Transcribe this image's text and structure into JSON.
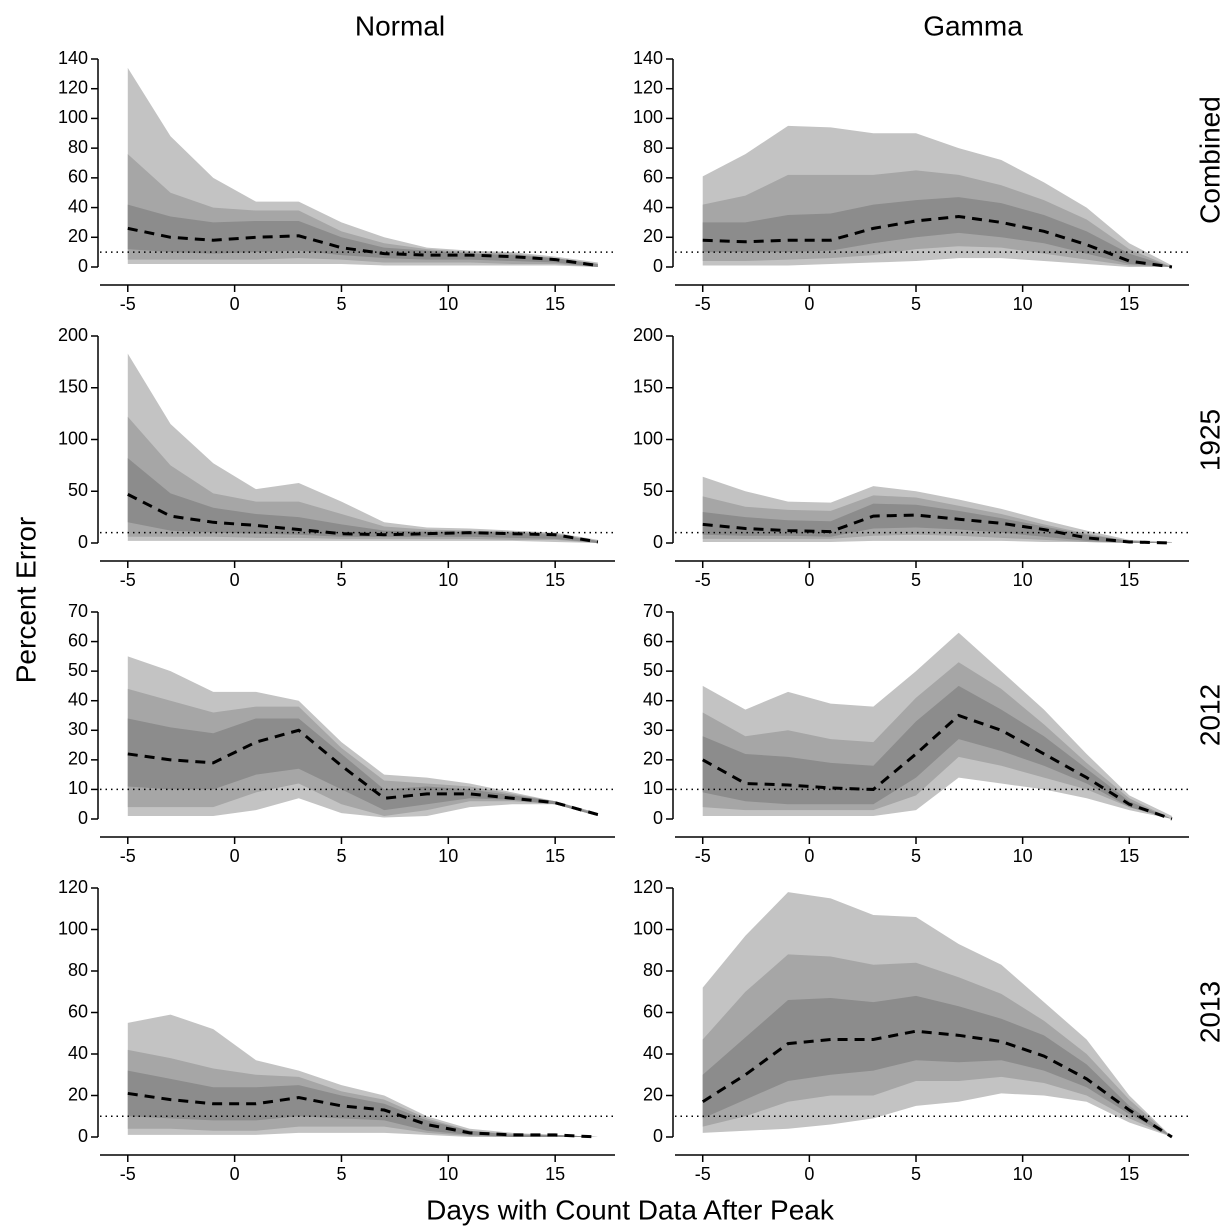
{
  "figure": {
    "column_titles": [
      "Normal",
      "Gamma"
    ],
    "row_labels": [
      "Combined",
      "1925",
      "2012",
      "2013"
    ],
    "ylabel": "Percent Error",
    "xlabel": "Days with Count Data After Peak"
  },
  "chart_data": [
    {
      "type": "band",
      "x": [
        -5,
        -3,
        -1,
        1,
        3,
        5,
        7,
        9,
        11,
        13,
        15,
        17
      ],
      "xlim": [
        -6.3,
        17.8
      ],
      "xticks": [
        -5,
        0,
        5,
        10,
        15
      ],
      "ylim": [
        0,
        140
      ],
      "yticks": [
        0,
        20,
        40,
        60,
        80,
        100,
        120,
        140
      ],
      "reference_line": 10,
      "bands": [
        {
          "color": "#c3c3c3",
          "lower": [
            2,
            2,
            2,
            2,
            2,
            2,
            1,
            1,
            1,
            1,
            1,
            0
          ],
          "upper": [
            134,
            88,
            60,
            44,
            44,
            30,
            20,
            13,
            11,
            10,
            7,
            3
          ]
        },
        {
          "color": "#a6a6a6",
          "lower": [
            5,
            5,
            5,
            5,
            6,
            5,
            3,
            3,
            3,
            2,
            2,
            0
          ],
          "upper": [
            76,
            50,
            40,
            38,
            38,
            24,
            16,
            12,
            10,
            9,
            6,
            2
          ]
        },
        {
          "color": "#8c8c8c",
          "lower": [
            12,
            10,
            9,
            10,
            11,
            8,
            6,
            5,
            5,
            4,
            3,
            0
          ],
          "upper": [
            42,
            34,
            30,
            31,
            31,
            20,
            13,
            11,
            9,
            8,
            6,
            2
          ]
        }
      ],
      "median": {
        "color": "#000000",
        "values": [
          26,
          20,
          18,
          20,
          21,
          13,
          9,
          8,
          8,
          7,
          5,
          1
        ]
      }
    },
    {
      "type": "band",
      "x": [
        -5,
        -3,
        -1,
        1,
        3,
        5,
        7,
        9,
        11,
        13,
        15,
        17
      ],
      "xlim": [
        -6.3,
        17.8
      ],
      "xticks": [
        -5,
        0,
        5,
        10,
        15
      ],
      "ylim": [
        0,
        140
      ],
      "yticks": [
        0,
        20,
        40,
        60,
        80,
        100,
        120,
        140
      ],
      "reference_line": 10,
      "bands": [
        {
          "color": "#c3c3c3",
          "lower": [
            1,
            1,
            1,
            2,
            3,
            4,
            6,
            6,
            4,
            2,
            0,
            0
          ],
          "upper": [
            61,
            76,
            95,
            94,
            90,
            90,
            80,
            72,
            57,
            40,
            16,
            1
          ]
        },
        {
          "color": "#a6a6a6",
          "lower": [
            4,
            4,
            5,
            6,
            8,
            12,
            14,
            13,
            9,
            5,
            1,
            0
          ],
          "upper": [
            42,
            48,
            62,
            62,
            62,
            65,
            62,
            55,
            45,
            32,
            12,
            0
          ]
        },
        {
          "color": "#8c8c8c",
          "lower": [
            10,
            10,
            10,
            11,
            16,
            20,
            23,
            20,
            16,
            9,
            2,
            0
          ],
          "upper": [
            30,
            30,
            35,
            36,
            42,
            45,
            47,
            43,
            35,
            24,
            9,
            0
          ]
        }
      ],
      "median": {
        "color": "#000000",
        "values": [
          18,
          17,
          18,
          18,
          26,
          31,
          34,
          30,
          24,
          15,
          4,
          0
        ]
      }
    },
    {
      "type": "band",
      "x": [
        -5,
        -3,
        -1,
        1,
        3,
        5,
        7,
        9,
        11,
        13,
        15,
        17
      ],
      "xlim": [
        -6.3,
        17.8
      ],
      "xticks": [
        -5,
        0,
        5,
        10,
        15
      ],
      "ylim": [
        0,
        200
      ],
      "yticks": [
        0,
        50,
        100,
        150,
        200
      ],
      "reference_line": 10,
      "bands": [
        {
          "color": "#c3c3c3",
          "lower": [
            2,
            2,
            2,
            2,
            2,
            2,
            2,
            2,
            2,
            2,
            1,
            0
          ],
          "upper": [
            183,
            115,
            77,
            52,
            58,
            40,
            20,
            15,
            14,
            12,
            10,
            3
          ]
        },
        {
          "color": "#a6a6a6",
          "lower": [
            6,
            6,
            6,
            5,
            5,
            4,
            4,
            4,
            4,
            3,
            3,
            0
          ],
          "upper": [
            122,
            75,
            48,
            40,
            40,
            28,
            16,
            13,
            12,
            11,
            9,
            2
          ]
        },
        {
          "color": "#8c8c8c",
          "lower": [
            20,
            12,
            10,
            9,
            8,
            6,
            6,
            6,
            6,
            5,
            4,
            0
          ],
          "upper": [
            82,
            48,
            34,
            28,
            25,
            18,
            12,
            11,
            11,
            10,
            8,
            2
          ]
        }
      ],
      "median": {
        "color": "#000000",
        "values": [
          47,
          26,
          20,
          17,
          13,
          9,
          8,
          9,
          10,
          9,
          8,
          1
        ]
      }
    },
    {
      "type": "band",
      "x": [
        -5,
        -3,
        -1,
        1,
        3,
        5,
        7,
        9,
        11,
        13,
        15,
        17
      ],
      "xlim": [
        -6.3,
        17.8
      ],
      "xticks": [
        -5,
        0,
        5,
        10,
        15
      ],
      "ylim": [
        0,
        200
      ],
      "yticks": [
        0,
        50,
        100,
        150,
        200
      ],
      "reference_line": 10,
      "bands": [
        {
          "color": "#c3c3c3",
          "lower": [
            1,
            1,
            1,
            1,
            2,
            2,
            2,
            2,
            1,
            1,
            0,
            0
          ],
          "upper": [
            64,
            50,
            40,
            39,
            55,
            50,
            42,
            33,
            22,
            12,
            3,
            1
          ]
        },
        {
          "color": "#a6a6a6",
          "lower": [
            4,
            4,
            4,
            4,
            7,
            8,
            7,
            5,
            3,
            1,
            0,
            0
          ],
          "upper": [
            45,
            35,
            32,
            31,
            46,
            44,
            36,
            28,
            18,
            9,
            2,
            0
          ]
        },
        {
          "color": "#8c8c8c",
          "lower": [
            8,
            7,
            7,
            6,
            14,
            15,
            13,
            10,
            6,
            2,
            0,
            0
          ],
          "upper": [
            30,
            25,
            22,
            21,
            38,
            37,
            31,
            24,
            16,
            8,
            2,
            0
          ]
        }
      ],
      "median": {
        "color": "#000000",
        "values": [
          18,
          14,
          12,
          11,
          26,
          27,
          23,
          19,
          13,
          5,
          1,
          0
        ]
      }
    },
    {
      "type": "band",
      "x": [
        -5,
        -3,
        -1,
        1,
        3,
        5,
        7,
        9,
        11,
        13,
        15,
        17
      ],
      "xlim": [
        -6.3,
        17.8
      ],
      "xticks": [
        -5,
        0,
        5,
        10,
        15
      ],
      "ylim": [
        0,
        70
      ],
      "yticks": [
        0,
        10,
        20,
        30,
        40,
        50,
        60,
        70
      ],
      "reference_line": 10,
      "bands": [
        {
          "color": "#c3c3c3",
          "lower": [
            1,
            1,
            1,
            3,
            7,
            2,
            0.5,
            1,
            4,
            5,
            5,
            1
          ],
          "upper": [
            55,
            50,
            43,
            43,
            40,
            26,
            15,
            14,
            12,
            9,
            6,
            2
          ]
        },
        {
          "color": "#a6a6a6",
          "lower": [
            4,
            4,
            4,
            9,
            12,
            5,
            1,
            3,
            6,
            6,
            5,
            1
          ],
          "upper": [
            44,
            40,
            36,
            38,
            38,
            24,
            13,
            12,
            11,
            8.5,
            6,
            2
          ]
        },
        {
          "color": "#8c8c8c",
          "lower": [
            11,
            10,
            10,
            15,
            17,
            10,
            3,
            5,
            7,
            6.5,
            5,
            1
          ],
          "upper": [
            34,
            31,
            29,
            34,
            34,
            22,
            10,
            11,
            10,
            8,
            6,
            1.5
          ]
        }
      ],
      "median": {
        "color": "#000000",
        "values": [
          22,
          20,
          19,
          26,
          30,
          18,
          7,
          8.5,
          8.5,
          7,
          5.5,
          1.5
        ]
      }
    },
    {
      "type": "band",
      "x": [
        -5,
        -3,
        -1,
        1,
        3,
        5,
        7,
        9,
        11,
        13,
        15,
        17
      ],
      "xlim": [
        -6.3,
        17.8
      ],
      "xticks": [
        -5,
        0,
        5,
        10,
        15
      ],
      "ylim": [
        0,
        70
      ],
      "yticks": [
        0,
        10,
        20,
        30,
        40,
        50,
        60,
        70
      ],
      "reference_line": 10,
      "bands": [
        {
          "color": "#c3c3c3",
          "lower": [
            1,
            1,
            1,
            1,
            1,
            3,
            14,
            12,
            10,
            7,
            3,
            0
          ],
          "upper": [
            45,
            37,
            43,
            39,
            38,
            50,
            63,
            50,
            37,
            22,
            8,
            1
          ]
        },
        {
          "color": "#a6a6a6",
          "lower": [
            4,
            3,
            3,
            3,
            3,
            8,
            21,
            18,
            14,
            10,
            4,
            0
          ],
          "upper": [
            36,
            28,
            30,
            27,
            26,
            41,
            53,
            44,
            32,
            19,
            7,
            0
          ]
        },
        {
          "color": "#8c8c8c",
          "lower": [
            9,
            6,
            5,
            5,
            5,
            14,
            27,
            23,
            18,
            12,
            4,
            0
          ],
          "upper": [
            28,
            22,
            21,
            19,
            18,
            33,
            45,
            37,
            28,
            17,
            6,
            0
          ]
        }
      ],
      "median": {
        "color": "#000000",
        "values": [
          20,
          12,
          11.5,
          10.5,
          10,
          22,
          35,
          30,
          22,
          14,
          5,
          0
        ]
      }
    },
    {
      "type": "band",
      "x": [
        -5,
        -3,
        -1,
        1,
        3,
        5,
        7,
        9,
        11,
        13,
        15,
        17
      ],
      "xlim": [
        -6.3,
        17.8
      ],
      "xticks": [
        -5,
        0,
        5,
        10,
        15
      ],
      "ylim": [
        0,
        120
      ],
      "yticks": [
        0,
        20,
        40,
        60,
        80,
        100,
        120
      ],
      "reference_line": 10,
      "bands": [
        {
          "color": "#c3c3c3",
          "lower": [
            1,
            1,
            1,
            1,
            2,
            2,
            2,
            1,
            0,
            0,
            0,
            0
          ],
          "upper": [
            55,
            59,
            52,
            37,
            32,
            25,
            20,
            10,
            4,
            2,
            1,
            0
          ]
        },
        {
          "color": "#a6a6a6",
          "lower": [
            4,
            4,
            3,
            3,
            5,
            5,
            5,
            2,
            0.5,
            0,
            0,
            0
          ],
          "upper": [
            42,
            38,
            33,
            30,
            29,
            22,
            18,
            9,
            3,
            1.5,
            1,
            0
          ]
        },
        {
          "color": "#8c8c8c",
          "lower": [
            10,
            9,
            8,
            8,
            10,
            9,
            8,
            3,
            1,
            0,
            0,
            0
          ],
          "upper": [
            32,
            28,
            24,
            24,
            25,
            20,
            16,
            8,
            3,
            1,
            1,
            0
          ]
        }
      ],
      "median": {
        "color": "#000000",
        "values": [
          21,
          18,
          16,
          16,
          19,
          15,
          13,
          6,
          2,
          1,
          1,
          0
        ]
      }
    },
    {
      "type": "band",
      "x": [
        -5,
        -3,
        -1,
        1,
        3,
        5,
        7,
        9,
        11,
        13,
        15,
        17
      ],
      "xlim": [
        -6.3,
        17.8
      ],
      "xticks": [
        -5,
        0,
        5,
        10,
        15
      ],
      "ylim": [
        0,
        120
      ],
      "yticks": [
        0,
        20,
        40,
        60,
        80,
        100,
        120
      ],
      "reference_line": 10,
      "bands": [
        {
          "color": "#c3c3c3",
          "lower": [
            2,
            3,
            4,
            6,
            9,
            15,
            17,
            21,
            20,
            17,
            7,
            0
          ],
          "upper": [
            72,
            97,
            118,
            115,
            107,
            106,
            93,
            83,
            65,
            47,
            20,
            0
          ]
        },
        {
          "color": "#a6a6a6",
          "lower": [
            5,
            10,
            17,
            20,
            20,
            27,
            27,
            29,
            26,
            20,
            9,
            0
          ],
          "upper": [
            47,
            70,
            88,
            87,
            83,
            84,
            77,
            69,
            56,
            40,
            18,
            0
          ]
        },
        {
          "color": "#8c8c8c",
          "lower": [
            9,
            18,
            27,
            30,
            32,
            37,
            36,
            37,
            32,
            24,
            11,
            0
          ],
          "upper": [
            30,
            48,
            66,
            67,
            65,
            68,
            63,
            57,
            49,
            35,
            15,
            0
          ]
        }
      ],
      "median": {
        "color": "#000000",
        "values": [
          17,
          30,
          45,
          47,
          47,
          51,
          49,
          46,
          39,
          28,
          13,
          0
        ]
      }
    }
  ]
}
